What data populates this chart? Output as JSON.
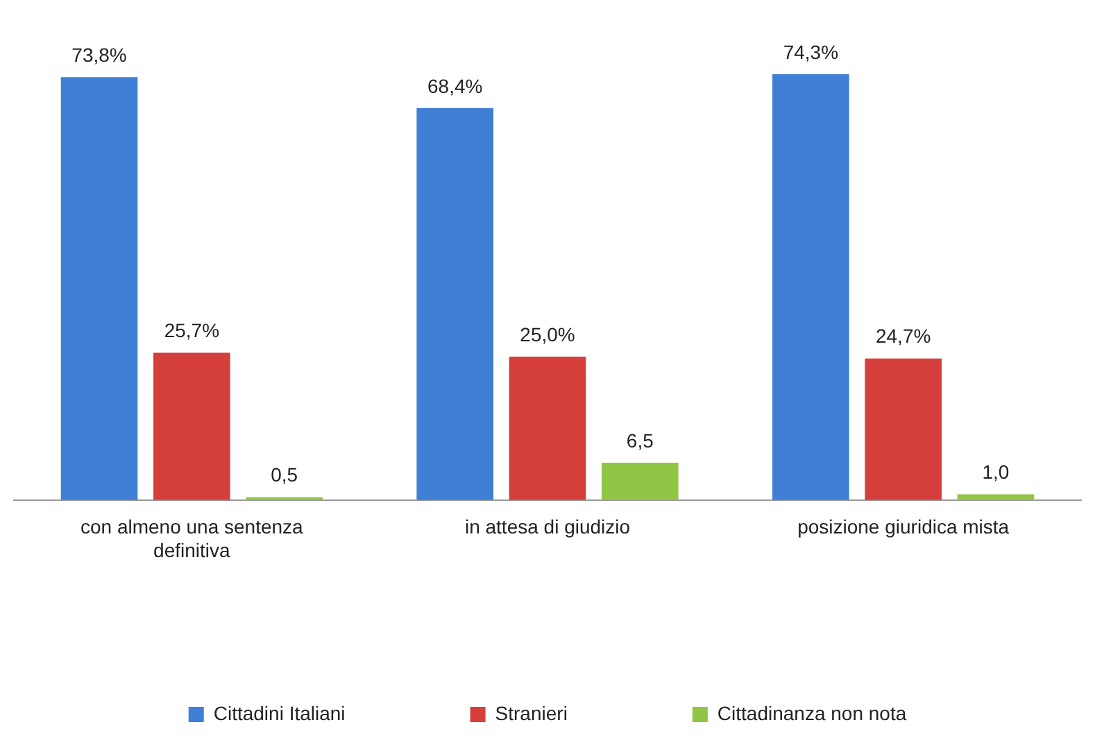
{
  "chart_data": {
    "type": "bar",
    "categories": [
      "con almeno una sentenza definitiva",
      "in attesa di giudizio",
      "posizione giuridica mista"
    ],
    "series": [
      {
        "name": "Cittadini Italiani",
        "color": "#3f7fd6",
        "values": [
          73.8,
          68.4,
          74.3
        ],
        "value_labels": [
          "73,8%",
          "68,4%",
          "74,3%"
        ]
      },
      {
        "name": "Stranieri",
        "color": "#d43f3c",
        "values": [
          25.7,
          25.0,
          24.7
        ],
        "value_labels": [
          "25,7%",
          "25,0%",
          "24,7%"
        ]
      },
      {
        "name": "Cittadinanza non nota",
        "color": "#92c446",
        "values": [
          0.5,
          6.5,
          1.0
        ],
        "value_labels": [
          "0,5",
          "6,5",
          "1,0"
        ]
      }
    ],
    "legend": "bottom",
    "grid": false
  }
}
